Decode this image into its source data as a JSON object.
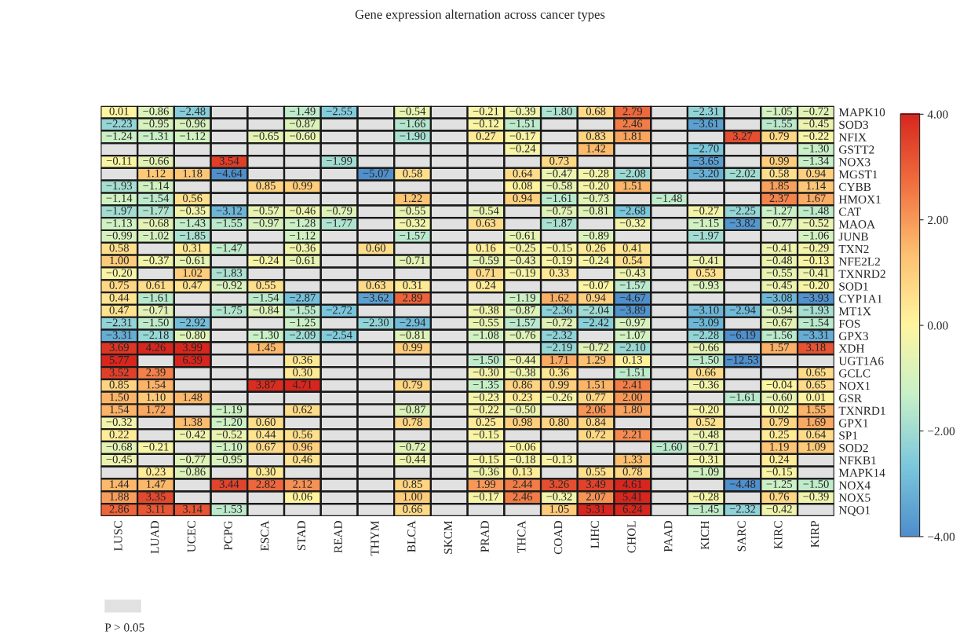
{
  "chart_data": {
    "type": "heatmap",
    "title": "Gene expression alternation across cancer types",
    "categories": [
      "LUSC",
      "LUAD",
      "UCEC",
      "PCPG",
      "ESCA",
      "STAD",
      "READ",
      "THYM",
      "BLCA",
      "SKCM",
      "PRAD",
      "THCA",
      "COAD",
      "LIHC",
      "CHOL",
      "PAAD",
      "KICH",
      "SARC",
      "KIRC",
      "KIRP"
    ],
    "y_categories": [
      "MAPK10",
      "SOD3",
      "NFIX",
      "GSTT2",
      "NOX3",
      "MGST1",
      "CYBB",
      "HMOX1",
      "CAT",
      "MAOA",
      "JUNB",
      "TXN2",
      "NFE2L2",
      "TXNRD2",
      "SOD1",
      "CYP1A1",
      "MT1X",
      "FOS",
      "GPX3",
      "XDH",
      "UGT1A6",
      "GCLC",
      "NOX1",
      "GSR",
      "TXNRD1",
      "GPX1",
      "SP1",
      "SOD2",
      "NFKB1",
      "MAPK14",
      "NOX4",
      "NOX5",
      "NQO1"
    ],
    "cells": [
      [
        0.01,
        -0.86,
        -2.48,
        null,
        null,
        -1.49,
        -2.55,
        null,
        -0.54,
        null,
        -0.21,
        -0.39,
        -1.8,
        0.68,
        2.79,
        null,
        -2.31,
        null,
        -1.05,
        -0.72
      ],
      [
        -2.23,
        -0.95,
        -0.96,
        null,
        null,
        -0.87,
        null,
        null,
        -1.66,
        null,
        -0.12,
        -1.51,
        null,
        null,
        2.46,
        null,
        -3.61,
        null,
        -1.55,
        -0.45
      ],
      [
        -1.24,
        -1.31,
        -1.12,
        null,
        -0.65,
        -0.6,
        null,
        null,
        -1.9,
        null,
        0.27,
        -0.17,
        null,
        0.83,
        1.81,
        null,
        null,
        3.27,
        0.79,
        -0.22
      ],
      [
        null,
        null,
        null,
        null,
        null,
        null,
        null,
        null,
        null,
        null,
        null,
        -0.24,
        null,
        1.42,
        null,
        null,
        -2.7,
        null,
        null,
        -1.3
      ],
      [
        -0.11,
        -0.66,
        null,
        3.54,
        null,
        null,
        -1.99,
        null,
        null,
        null,
        null,
        null,
        0.73,
        null,
        null,
        null,
        -3.65,
        null,
        0.99,
        -1.34
      ],
      [
        null,
        1.12,
        1.18,
        -4.64,
        null,
        null,
        null,
        -5.07,
        0.58,
        null,
        null,
        0.64,
        -0.47,
        -0.28,
        -2.08,
        null,
        -3.2,
        -2.02,
        0.58,
        0.94
      ],
      [
        -1.93,
        -1.14,
        null,
        null,
        0.85,
        0.99,
        null,
        null,
        null,
        null,
        null,
        0.08,
        -0.58,
        -0.2,
        1.51,
        null,
        null,
        null,
        1.85,
        1.14
      ],
      [
        -1.14,
        -1.54,
        0.56,
        null,
        null,
        null,
        null,
        null,
        1.22,
        null,
        null,
        0.94,
        -1.61,
        -0.73,
        null,
        -1.48,
        null,
        null,
        2.37,
        1.67
      ],
      [
        -1.97,
        -1.77,
        -0.35,
        -3.12,
        -0.57,
        -0.46,
        -0.79,
        null,
        -0.55,
        null,
        -0.54,
        null,
        -0.75,
        -0.81,
        -2.68,
        null,
        -0.27,
        -2.25,
        -1.27,
        -1.48
      ],
      [
        -1.13,
        -0.68,
        -1.43,
        -1.55,
        -0.97,
        -1.28,
        -1.77,
        null,
        -0.32,
        null,
        0.63,
        null,
        -1.87,
        null,
        -0.32,
        null,
        -1.15,
        -3.82,
        -0.77,
        -0.52
      ],
      [
        -0.99,
        -1.02,
        -1.85,
        null,
        null,
        -1.12,
        null,
        null,
        -1.57,
        null,
        null,
        -0.61,
        null,
        -0.89,
        null,
        null,
        -1.97,
        null,
        null,
        -1.06
      ],
      [
        0.58,
        null,
        0.31,
        -1.47,
        null,
        -0.36,
        null,
        0.6,
        null,
        null,
        0.16,
        -0.25,
        -0.15,
        0.26,
        0.41,
        null,
        null,
        null,
        -0.41,
        -0.29
      ],
      [
        1.0,
        -0.37,
        -0.61,
        null,
        -0.24,
        -0.61,
        null,
        null,
        -0.71,
        null,
        -0.59,
        -0.43,
        -0.19,
        -0.24,
        0.54,
        null,
        -0.41,
        null,
        -0.48,
        -0.13
      ],
      [
        -0.2,
        null,
        1.02,
        -1.83,
        null,
        null,
        null,
        null,
        null,
        null,
        0.71,
        -0.19,
        0.33,
        null,
        -0.43,
        null,
        0.53,
        null,
        -0.55,
        -0.41
      ],
      [
        0.75,
        0.61,
        0.47,
        -0.92,
        0.55,
        null,
        null,
        0.63,
        0.31,
        null,
        0.24,
        null,
        null,
        -0.07,
        -1.57,
        null,
        -0.93,
        null,
        -0.45,
        -0.2
      ],
      [
        0.44,
        -1.61,
        null,
        null,
        -1.54,
        -2.87,
        null,
        -3.62,
        2.89,
        null,
        null,
        -1.19,
        1.62,
        0.94,
        -4.67,
        null,
        null,
        null,
        -3.08,
        -3.93
      ],
      [
        0.47,
        -0.71,
        null,
        -1.75,
        -0.84,
        -1.55,
        -2.72,
        null,
        null,
        null,
        -0.38,
        -0.87,
        -2.36,
        -2.04,
        -3.89,
        null,
        -3.1,
        -2.94,
        -0.94,
        -1.93
      ],
      [
        -2.31,
        -1.5,
        -2.92,
        null,
        null,
        -1.25,
        null,
        -2.3,
        -2.94,
        null,
        -0.55,
        -1.57,
        -0.72,
        -2.42,
        -0.97,
        null,
        -3.09,
        null,
        -0.67,
        -1.54
      ],
      [
        -3.31,
        -2.18,
        -0.8,
        null,
        -1.3,
        -2.09,
        -2.54,
        null,
        -0.81,
        null,
        -1.08,
        -0.76,
        -2.32,
        null,
        -1.07,
        null,
        -2.28,
        -6.19,
        -1.56,
        -3.31
      ],
      [
        3.69,
        4.26,
        3.99,
        null,
        1.45,
        null,
        null,
        null,
        0.99,
        null,
        null,
        null,
        -2.19,
        -0.72,
        -2.1,
        null,
        -0.66,
        null,
        1.57,
        3.18
      ],
      [
        5.77,
        null,
        6.39,
        null,
        null,
        0.36,
        null,
        null,
        null,
        null,
        -1.5,
        -0.44,
        1.71,
        1.29,
        0.13,
        null,
        -1.5,
        -12.53,
        null,
        null
      ],
      [
        3.52,
        2.39,
        null,
        null,
        null,
        0.3,
        null,
        null,
        null,
        null,
        -0.3,
        -0.38,
        0.36,
        null,
        -1.51,
        null,
        0.66,
        null,
        null,
        0.65
      ],
      [
        0.85,
        1.54,
        null,
        null,
        3.87,
        4.71,
        null,
        null,
        0.79,
        null,
        -1.35,
        0.86,
        0.99,
        1.51,
        2.41,
        null,
        -0.36,
        null,
        -0.04,
        0.65
      ],
      [
        1.5,
        1.1,
        1.48,
        null,
        null,
        null,
        null,
        null,
        null,
        null,
        -0.23,
        0.23,
        -0.26,
        0.77,
        2.0,
        null,
        null,
        -1.61,
        -0.6,
        0.01
      ],
      [
        1.54,
        1.72,
        null,
        -1.19,
        null,
        0.62,
        null,
        null,
        -0.87,
        null,
        -0.22,
        -0.5,
        null,
        2.06,
        1.8,
        null,
        -0.2,
        null,
        0.02,
        1.55
      ],
      [
        -0.32,
        null,
        1.38,
        -1.2,
        0.6,
        null,
        null,
        null,
        0.78,
        null,
        0.25,
        0.98,
        0.8,
        0.84,
        null,
        null,
        0.52,
        null,
        0.79,
        1.69
      ],
      [
        0.22,
        null,
        -0.42,
        -0.52,
        0.44,
        0.56,
        null,
        null,
        null,
        null,
        -0.15,
        null,
        null,
        0.72,
        2.21,
        null,
        -0.48,
        null,
        0.25,
        0.64
      ],
      [
        -0.68,
        -0.21,
        null,
        -1.1,
        0.67,
        0.96,
        null,
        null,
        -0.72,
        null,
        null,
        -0.06,
        null,
        null,
        null,
        -1.6,
        -0.71,
        null,
        1.19,
        1.09
      ],
      [
        -0.45,
        null,
        -0.77,
        -0.95,
        null,
        0.46,
        null,
        null,
        -0.44,
        null,
        -0.15,
        -0.18,
        -0.13,
        null,
        1.33,
        null,
        -0.31,
        null,
        0.24,
        null
      ],
      [
        null,
        0.23,
        -0.86,
        null,
        0.3,
        null,
        null,
        null,
        null,
        null,
        -0.36,
        0.13,
        null,
        0.55,
        0.78,
        null,
        -1.09,
        null,
        -0.15,
        null
      ],
      [
        1.44,
        1.47,
        null,
        3.44,
        2.82,
        2.12,
        null,
        null,
        0.85,
        null,
        1.99,
        2.44,
        3.26,
        3.49,
        4.61,
        null,
        null,
        -4.48,
        -1.25,
        -1.5
      ],
      [
        1.88,
        3.35,
        null,
        null,
        null,
        0.06,
        null,
        null,
        1.0,
        null,
        -0.17,
        2.46,
        -0.32,
        2.07,
        5.41,
        null,
        -0.28,
        null,
        0.76,
        -0.39
      ],
      [
        2.86,
        3.11,
        3.14,
        -1.53,
        null,
        null,
        null,
        null,
        0.66,
        null,
        null,
        null,
        1.05,
        5.31,
        6.24,
        null,
        -1.45,
        -2.32,
        -0.42,
        null
      ]
    ],
    "cell_labels": [
      [
        "0.01",
        "−0.86",
        "−2.48",
        null,
        null,
        "−1.49",
        "−2.55",
        null,
        "−0.54",
        null,
        "−0.21",
        "−0.39",
        "−1.80",
        "0.68",
        "2.79",
        null,
        "−2.31",
        null,
        "−1.05",
        "−0.72"
      ],
      [
        "−2.23",
        "−0.95",
        "−0.96",
        null,
        null,
        "−0.87",
        null,
        null,
        "−1.66",
        null,
        "−0.12",
        "−1.51",
        null,
        null,
        "2.46",
        null,
        "−3.61",
        null,
        "−1.55",
        "−0.45"
      ],
      [
        "−1.24",
        "−1.31",
        "−1.12",
        null,
        "−0.65",
        "−0.60",
        null,
        null,
        "−1.90",
        null,
        "0.27",
        "−0.17",
        null,
        "0.83",
        "1.81",
        null,
        null,
        "3.27",
        "0.79",
        "−0.22"
      ],
      [
        null,
        null,
        null,
        null,
        null,
        null,
        null,
        null,
        null,
        null,
        null,
        "−0.24",
        null,
        "1.42",
        null,
        null,
        "−2.70",
        null,
        null,
        "−1.30"
      ],
      [
        "−0.11",
        "−0.66",
        null,
        "3.54",
        null,
        null,
        "−1.99",
        null,
        null,
        null,
        null,
        null,
        "0.73",
        null,
        null,
        null,
        "−3.65",
        null,
        "0.99",
        "−1.34"
      ],
      [
        null,
        "1.12",
        "1.18",
        "−4.64",
        null,
        null,
        null,
        "−5.07",
        "0.58",
        null,
        null,
        "0.64",
        "−0.47",
        "−0.28",
        "−2.08",
        null,
        "−3.20",
        "−2.02",
        "0.58",
        "0.94"
      ],
      [
        "−1.93",
        "−1.14",
        null,
        null,
        "0.85",
        "0.99",
        null,
        null,
        null,
        null,
        null,
        "0.08",
        "−0.58",
        "−0.20",
        "1.51",
        null,
        null,
        null,
        "1.85",
        "1.14"
      ],
      [
        "−1.14",
        "−1.54",
        "0.56",
        null,
        null,
        null,
        null,
        null,
        "1.22",
        null,
        null,
        "0.94",
        "−1.61",
        "−0.73",
        null,
        "−1.48",
        null,
        null,
        "2.37",
        "1.67"
      ],
      [
        "−1.97",
        "−1.77",
        "−0.35",
        "−3.12",
        "−0.57",
        "−0.46",
        "−0.79",
        null,
        "−0.55",
        null,
        "−0.54",
        null,
        "−0.75",
        "−0.81",
        "−2.68",
        null,
        "−0.27",
        "−2.25",
        "−1.27",
        "−1.48"
      ],
      [
        "−1.13",
        "−0.68",
        "−1.43",
        "−1.55",
        "−0.97",
        "−1.28",
        "−1.77",
        null,
        "−0.32",
        null,
        "0.63",
        null,
        "−1.87",
        null,
        "−0.32",
        null,
        "−1.15",
        "−3.82",
        "−0.77",
        "−0.52"
      ],
      [
        "−0.99",
        "−1.02",
        "−1.85",
        null,
        null,
        "−1.12",
        null,
        null,
        "−1.57",
        null,
        null,
        "−0.61",
        null,
        "−0.89",
        null,
        null,
        "−1.97",
        null,
        null,
        "−1.06"
      ],
      [
        "0.58",
        null,
        "0.31",
        "−1.47",
        null,
        "−0.36",
        null,
        "0.60",
        null,
        null,
        "0.16",
        "−0.25",
        "−0.15",
        "0.26",
        "0.41",
        null,
        null,
        null,
        "−0.41",
        "−0.29"
      ],
      [
        "1.00",
        "−0.37",
        "−0.61",
        null,
        "−0.24",
        "−0.61",
        null,
        null,
        "−0.71",
        null,
        "−0.59",
        "−0.43",
        "−0.19",
        "−0.24",
        "0.54",
        null,
        "−0.41",
        null,
        "−0.48",
        "−0.13"
      ],
      [
        "−0.20",
        null,
        "1.02",
        "−1.83",
        null,
        null,
        null,
        null,
        null,
        null,
        "0.71",
        "−0.19",
        "0.33",
        null,
        "−0.43",
        null,
        "0.53",
        null,
        "−0.55",
        "−0.41"
      ],
      [
        "0.75",
        "0.61",
        "0.47",
        "−0.92",
        "0.55",
        null,
        null,
        "0.63",
        "0.31",
        null,
        "0.24",
        null,
        null,
        "−0.07",
        "−1.57",
        null,
        "−0.93",
        null,
        "−0.45",
        "−0.20"
      ],
      [
        "0.44",
        "−1.61",
        null,
        null,
        "−1.54",
        "−2.87",
        null,
        "−3.62",
        "2.89",
        null,
        null,
        "−1.19",
        "1.62",
        "0.94",
        "−4.67",
        null,
        null,
        null,
        "−3.08",
        "−3.93"
      ],
      [
        "0.47",
        "−0.71",
        null,
        "−1.75",
        "−0.84",
        "−1.55",
        "−2.72",
        null,
        null,
        null,
        "−0.38",
        "−0.87",
        "−2.36",
        "−2.04",
        "−3.89",
        null,
        "−3.10",
        "−2.94",
        "−0.94",
        "−1.93"
      ],
      [
        "−2.31",
        "−1.50",
        "−2.92",
        null,
        null,
        "−1.25",
        null,
        "−2.30",
        "−2.94",
        null,
        "−0.55",
        "−1.57",
        "−0.72",
        "−2.42",
        "−0.97",
        null,
        "−3.09",
        null,
        "−0.67",
        "−1.54"
      ],
      [
        "−3.31",
        "−2.18",
        "−0.80",
        null,
        "−1.30",
        "−2.09",
        "−2.54",
        null,
        "−0.81",
        null,
        "−1.08",
        "−0.76",
        "−2.32",
        null,
        "−1.07",
        null,
        "−2.28",
        "−6.19",
        "−1.56",
        "−3.31"
      ],
      [
        "3.69",
        "4.26",
        "3.99",
        null,
        "1.45",
        null,
        null,
        null,
        "0.99",
        null,
        null,
        null,
        "−2.19",
        "−0.72",
        "−2.10",
        null,
        "−0.66",
        null,
        "1.57",
        "3.18"
      ],
      [
        "5.77",
        null,
        "6.39",
        null,
        null,
        "0.36",
        null,
        null,
        null,
        null,
        "−1.50",
        "−0.44",
        "1.71",
        "1.29",
        "0.13",
        null,
        "−1.50",
        "−12.53",
        null,
        null
      ],
      [
        "3.52",
        "2.39",
        null,
        null,
        null,
        "0.30",
        null,
        null,
        null,
        null,
        "−0.30",
        "−0.38",
        "0.36",
        null,
        "−1.51",
        null,
        "0.66",
        null,
        null,
        "0.65"
      ],
      [
        "0.85",
        "1.54",
        null,
        null,
        "3.87",
        "4.71",
        null,
        null,
        "0.79",
        null,
        "−1.35",
        "0.86",
        "0.99",
        "1.51",
        "2.41",
        null,
        "−0.36",
        null,
        "−0.04",
        "0.65"
      ],
      [
        "1.50",
        "1.10",
        "1.48",
        null,
        null,
        null,
        null,
        null,
        null,
        null,
        "−0.23",
        "0.23",
        "−0.26",
        "0.77",
        "2.00",
        null,
        null,
        "−1.61",
        "−0.60",
        "0.01"
      ],
      [
        "1.54",
        "1.72",
        null,
        "−1.19",
        null,
        "0.62",
        null,
        null,
        "−0.87",
        null,
        "−0.22",
        "−0.50",
        null,
        "2.06",
        "1.80",
        null,
        "−0.20",
        null,
        "0.02",
        "1.55"
      ],
      [
        "−0.32",
        null,
        "1.38",
        "−1.20",
        "0.60",
        null,
        null,
        null,
        "0.78",
        null,
        "0.25",
        "0.98",
        "0.80",
        "0.84",
        null,
        null,
        "0.52",
        null,
        "0.79",
        "1.69"
      ],
      [
        "0.22",
        null,
        "−0.42",
        "−0.52",
        "0.44",
        "0.56",
        null,
        null,
        null,
        null,
        "−0.15",
        null,
        null,
        "0.72",
        "2.21",
        null,
        "−0.48",
        null,
        "0.25",
        "0.64"
      ],
      [
        "−0.68",
        "−0.21",
        null,
        "−1.10",
        "0.67",
        "0.96",
        null,
        null,
        "−0.72",
        null,
        null,
        "−0.06",
        null,
        null,
        null,
        "−1.60",
        "−0.71",
        null,
        "1.19",
        "1.09"
      ],
      [
        "−0.45",
        null,
        "−0.77",
        "−0.95",
        null,
        "0.46",
        null,
        null,
        "−0.44",
        null,
        "−0.15",
        "−0.18",
        "−0.13",
        null,
        "1.33",
        null,
        "−0.31",
        null,
        "0.24",
        null
      ],
      [
        null,
        "0.23",
        "−0.86",
        null,
        "0.30",
        null,
        null,
        null,
        null,
        null,
        "−0.36",
        "0.13",
        null,
        "0.55",
        "0.78",
        null,
        "−1.09",
        null,
        "−0.15",
        null
      ],
      [
        "1.44",
        "1.47",
        null,
        "3.44",
        "2.82",
        "2.12",
        null,
        null,
        "0.85",
        null,
        "1.99",
        "2.44",
        "3.26",
        "3.49",
        "4.61",
        null,
        null,
        "−4.48",
        "−1.25",
        "−1.50"
      ],
      [
        "1.88",
        "3.35",
        null,
        null,
        null,
        "0.06",
        null,
        null,
        "1.00",
        null,
        "−0.17",
        "2.46",
        "−0.32",
        "2.07",
        "5.41",
        null,
        "−0.28",
        null,
        "0.76",
        "−0.39"
      ],
      [
        "2.86",
        "3.11",
        "3.14",
        "−1.53",
        null,
        null,
        null,
        null,
        "0.66",
        null,
        null,
        null,
        "1.05",
        "5.31",
        "6.24",
        null,
        "−1.45",
        "−2.32",
        "−0.42",
        null
      ]
    ],
    "clim": [
      -4,
      4
    ],
    "cticks": [
      {
        "value": 4,
        "label": "4.00"
      },
      {
        "value": 2,
        "label": "2.00"
      },
      {
        "value": 0,
        "label": "0.00"
      },
      {
        "value": -2,
        "label": "−2.00"
      },
      {
        "value": -4,
        "label": "−4.00"
      }
    ],
    "annotations": [
      "P > 0.05"
    ]
  }
}
